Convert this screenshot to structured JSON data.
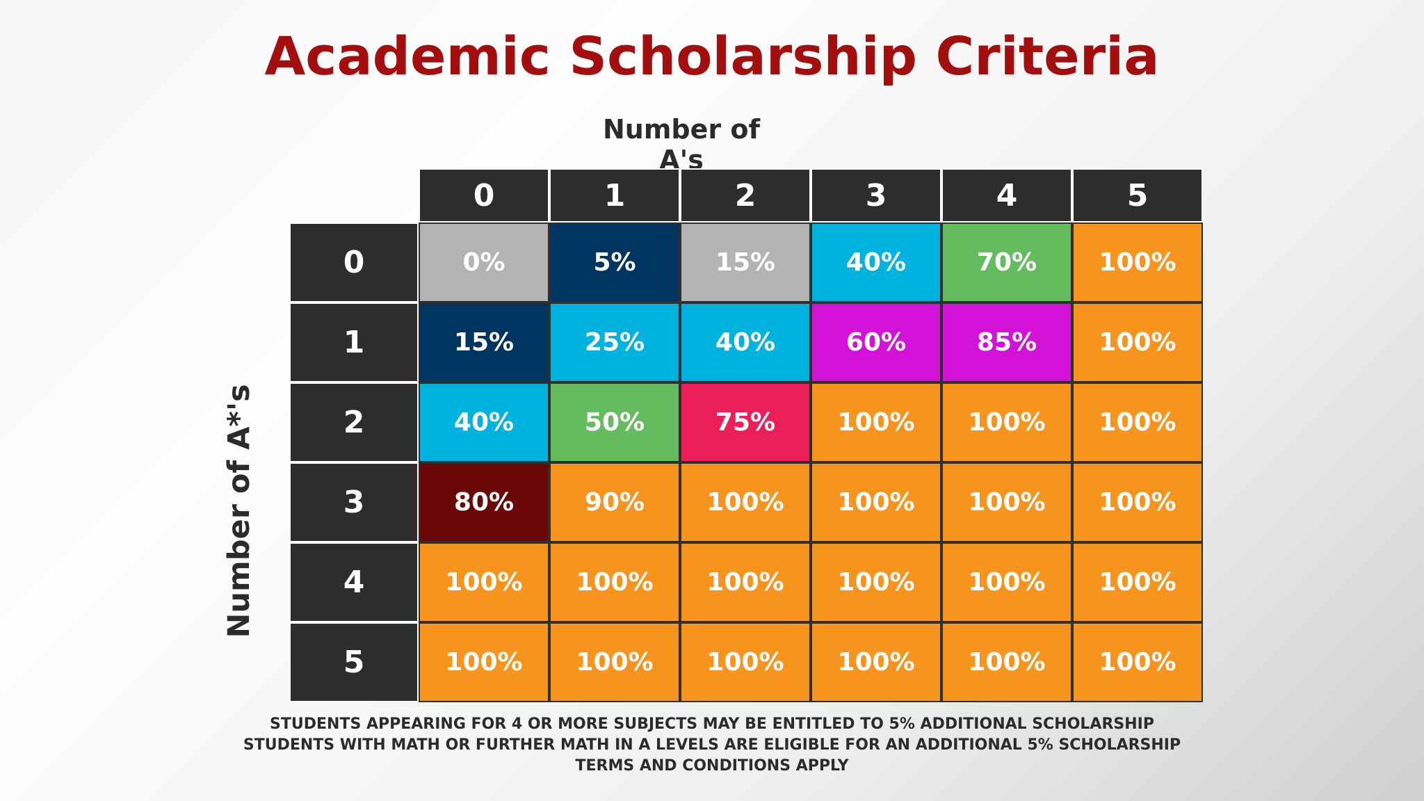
{
  "title": "Academic Scholarship Criteria",
  "footnotes": [
    "STUDENTS APPEARING FOR 4 OR MORE SUBJECTS MAY BE ENTITLED TO 5% ADDITIONAL SCHOLARSHIP",
    "STUDENTS WITH MATH OR FURTHER MATH IN A LEVELS ARE ELIGIBLE FOR AN ADDITIONAL 5% SCHOLARSHIP",
    "TERMS AND CONDITIONS APPLY"
  ],
  "colors": {
    "title": "#a30f0f",
    "header": "#2d2d2d",
    "0%": "#b3b3b3",
    "5%": "#003562",
    "15%": "#b3b3b3",
    "25%": "#00b3df",
    "40%": "#00b3df",
    "50%": "#65bc5f",
    "60%": "#d312d8",
    "70%": "#65bc5f",
    "75%": "#ec1e5a",
    "80%": "#6a0606",
    "85%": "#d312d8",
    "90%": "#f7941e",
    "100%": "#f7941e"
  },
  "chart_data": {
    "type": "heatmap",
    "title": "Academic Scholarship Criteria",
    "xlabel": "Number of A's",
    "ylabel": "Number of A*'s",
    "x": [
      "0",
      "1",
      "2",
      "3",
      "4",
      "5"
    ],
    "y": [
      "0",
      "1",
      "2",
      "3",
      "4",
      "5"
    ],
    "values": [
      [
        "0%",
        "5%",
        "15%",
        "40%",
        "70%",
        "100%"
      ],
      [
        "15%",
        "25%",
        "40%",
        "60%",
        "85%",
        "100%"
      ],
      [
        "40%",
        "50%",
        "75%",
        "100%",
        "100%",
        "100%"
      ],
      [
        "80%",
        "90%",
        "100%",
        "100%",
        "100%",
        "100%"
      ],
      [
        "100%",
        "100%",
        "100%",
        "100%",
        "100%",
        "100%"
      ],
      [
        "100%",
        "100%",
        "100%",
        "100%",
        "100%",
        "100%"
      ]
    ],
    "color_overrides": {
      "1-0": "#003562",
      "0-1": "#003562"
    }
  }
}
